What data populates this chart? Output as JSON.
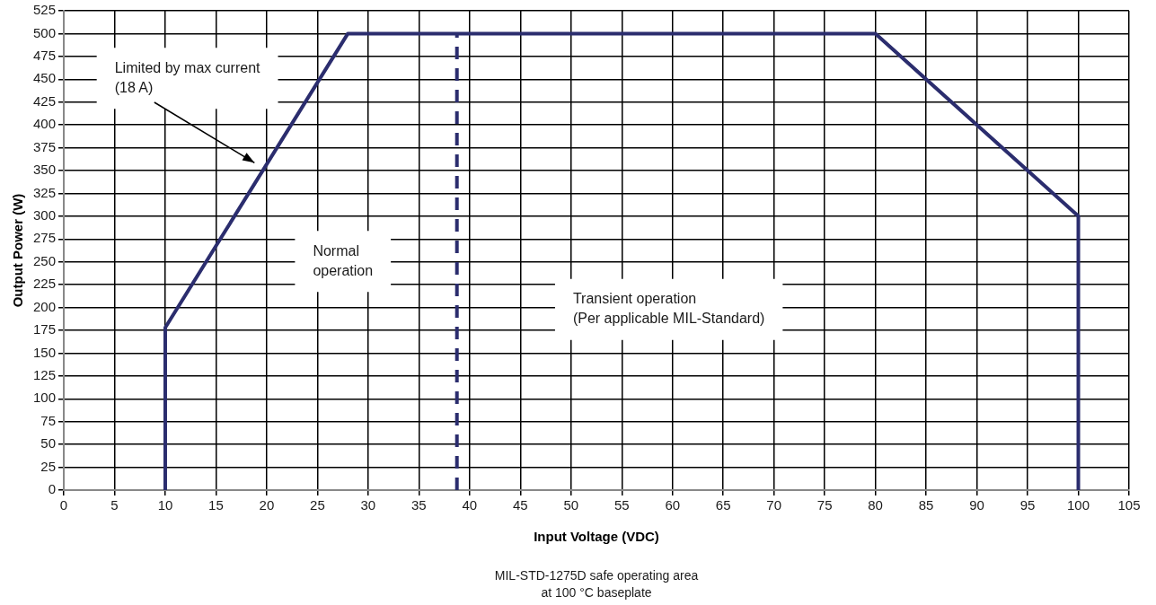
{
  "chart_data": {
    "type": "line",
    "xlabel": "Input Voltage (VDC)",
    "ylabel": "Output Power (W)",
    "x": [
      10,
      10,
      28,
      80,
      100,
      100
    ],
    "series": [
      {
        "color": "#2b2d6e",
        "values": [
          0,
          178,
          500,
          500,
          300,
          0
        ]
      }
    ],
    "xlim": [
      0,
      105
    ],
    "xticks": [
      0,
      5,
      10,
      15,
      20,
      25,
      30,
      35,
      40,
      45,
      50,
      55,
      60,
      65,
      70,
      75,
      80,
      85,
      90,
      95,
      100,
      105
    ],
    "ylim": [
      0,
      525
    ],
    "yticks": [
      0,
      25,
      50,
      75,
      100,
      125,
      150,
      175,
      200,
      225,
      250,
      275,
      300,
      325,
      350,
      375,
      400,
      425,
      450,
      475,
      500,
      525
    ],
    "grid": true,
    "legend": false,
    "marker": "none",
    "line_style": "solid",
    "ref_lines": [
      {
        "axis": "x",
        "value": 38.75,
        "color": "#2b2d6e",
        "line_style": "dashed"
      }
    ],
    "annotations": [
      "Limited by max current\n(18 A)",
      "Normal\noperation",
      "Transient operation\n(Per applicable MIL-Standard)",
      "MIL-STD-1275D safe operating area\nat 100 °C baseplate"
    ]
  }
}
